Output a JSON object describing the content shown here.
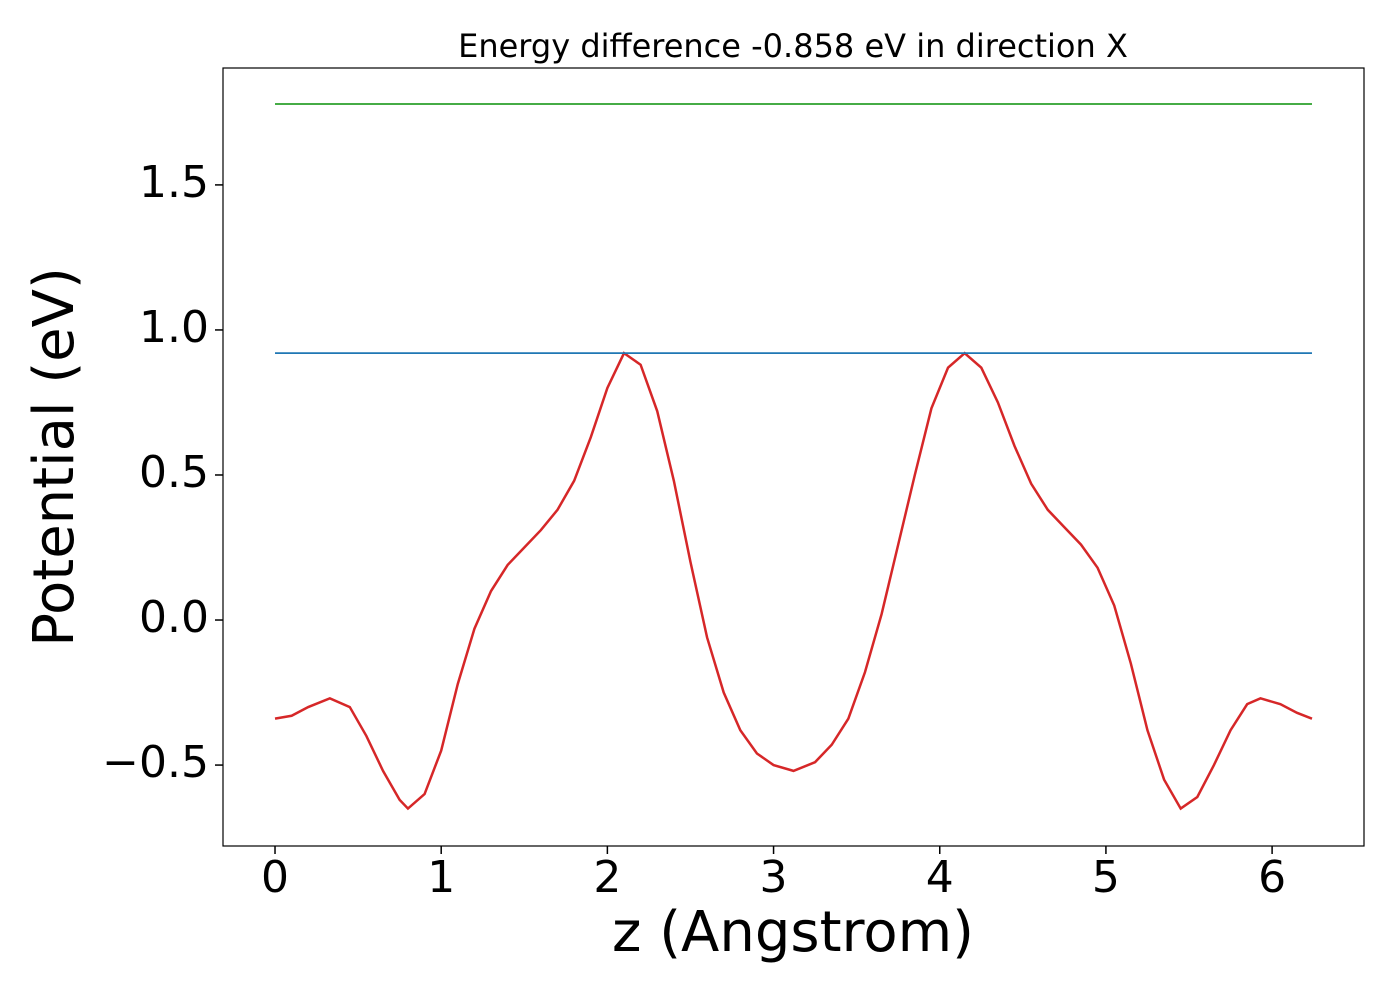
{
  "chart_data": {
    "type": "line",
    "title": "Energy difference -0.858 eV in direction X",
    "xlabel": "z (Angstrom)",
    "ylabel": "Potential (eV)",
    "xlim": [
      -0.313,
      6.553
    ],
    "ylim": [
      -0.779,
      1.903
    ],
    "xticks": [
      0,
      1,
      2,
      3,
      4,
      5,
      6
    ],
    "yticks": [
      {
        "value": -0.5,
        "label": "−0.5"
      },
      {
        "value": 0,
        "label": "0.0"
      },
      0.5,
      {
        "value": 1,
        "label": "1.0"
      },
      1.5
    ],
    "grid": false,
    "series": [
      {
        "color": "#d62728",
        "x": [
          0,
          0.1,
          0.2,
          0.33,
          0.45,
          0.55,
          0.65,
          0.75,
          0.8,
          0.9,
          1.0,
          1.1,
          1.2,
          1.3,
          1.4,
          1.5,
          1.6,
          1.7,
          1.8,
          1.9,
          2.0,
          2.1,
          2.2,
          2.3,
          2.4,
          2.5,
          2.6,
          2.7,
          2.8,
          2.9,
          3.0,
          3.12,
          3.25,
          3.35,
          3.45,
          3.55,
          3.65,
          3.75,
          3.85,
          3.95,
          4.05,
          4.15,
          4.25,
          4.35,
          4.45,
          4.55,
          4.65,
          4.75,
          4.85,
          4.95,
          5.05,
          5.15,
          5.25,
          5.35,
          5.45,
          5.55,
          5.65,
          5.75,
          5.85,
          5.93,
          6.05,
          6.15,
          6.24
        ],
        "values": [
          -0.34,
          -0.33,
          -0.3,
          -0.27,
          -0.3,
          -0.4,
          -0.52,
          -0.62,
          -0.65,
          -0.6,
          -0.45,
          -0.22,
          -0.03,
          0.1,
          0.19,
          0.25,
          0.31,
          0.38,
          0.48,
          0.63,
          0.8,
          0.92,
          0.88,
          0.72,
          0.48,
          0.2,
          -0.06,
          -0.25,
          -0.38,
          -0.46,
          -0.5,
          -0.52,
          -0.49,
          -0.43,
          -0.34,
          -0.18,
          0.02,
          0.26,
          0.5,
          0.73,
          0.87,
          0.92,
          0.87,
          0.75,
          0.6,
          0.47,
          0.38,
          0.32,
          0.26,
          0.18,
          0.05,
          -0.15,
          -0.38,
          -0.55,
          -0.65,
          -0.61,
          -0.5,
          -0.38,
          -0.29,
          -0.27,
          -0.29,
          -0.32,
          -0.34
        ]
      },
      {
        "color": "#1f77b4",
        "x": [
          0,
          6.24
        ],
        "values": [
          0.92,
          0.92
        ]
      },
      {
        "color": "#2ca02c",
        "x": [
          0,
          6.24
        ],
        "values": [
          1.779,
          1.779
        ]
      }
    ]
  }
}
